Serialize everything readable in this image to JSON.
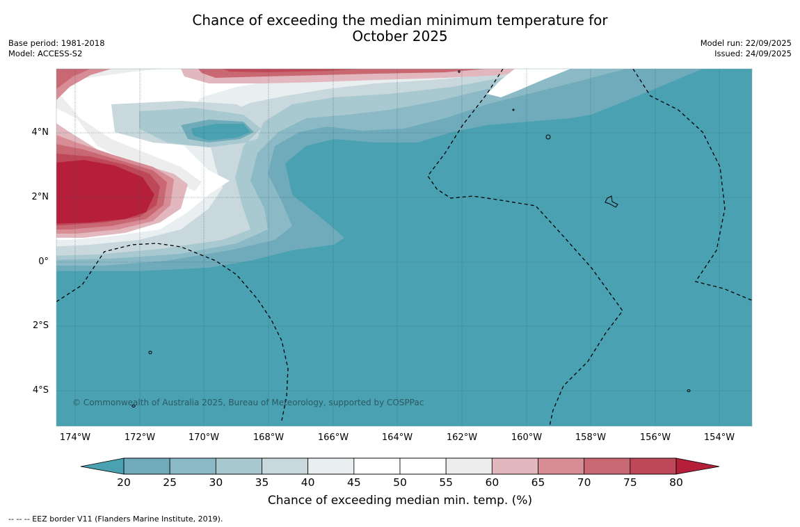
{
  "title_line1": "Chance of exceeding the median minimum temperature for",
  "title_line2": "October 2025",
  "base_period": "Base period: 1981-2018",
  "model": "Model: ACCESS-S2",
  "model_run": "Model run: 22/09/2025",
  "issued": "Issued: 24/09/2025",
  "lat_labels": [
    "4°N",
    "2°N",
    "0°",
    "2°S",
    "4°S"
  ],
  "lon_labels": [
    "174°W",
    "172°W",
    "170°W",
    "168°W",
    "166°W",
    "164°W",
    "162°W",
    "160°W",
    "158°W",
    "156°W",
    "154°W"
  ],
  "copyright": "© Commonwealth of Australia 2025, Bureau of Meteorology, supported by COSPPac",
  "colorbar": {
    "ticks": [
      "20",
      "25",
      "30",
      "35",
      "40",
      "45",
      "50",
      "55",
      "60",
      "65",
      "70",
      "75",
      "80"
    ],
    "colors": [
      "#6fabba",
      "#8bbac6",
      "#a9c9d0",
      "#c8d8dd",
      "#e9eff0",
      "#ffffff",
      "#ffffff",
      "#ededed",
      "#e2b8be",
      "#d88c96",
      "#c96873",
      "#bf4858"
    ],
    "under_color": "#49a1b2",
    "over_color": "#b51f3a",
    "title": "Chance of exceeding median min. temp. (%)"
  },
  "footer": "--  --  -- EEZ border V11 (Flanders Marine Institute, 2019).",
  "colors": {
    "ocean_base": "#49a1b2",
    "strong_warm": "#b51f3a"
  }
}
